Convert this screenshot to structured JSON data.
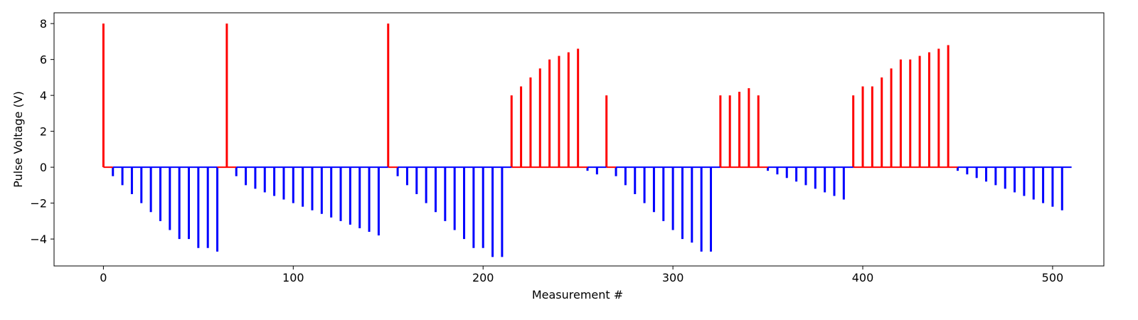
{
  "chart_data": {
    "type": "bar",
    "title": "",
    "xlabel": "Measurement #",
    "ylabel": "Pulse Voltage (V)",
    "xlim": [
      -26,
      527
    ],
    "ylim": [
      -5.5,
      8.6
    ],
    "xticks": [
      0,
      100,
      200,
      300,
      400,
      500
    ],
    "xtick_labels": [
      "0",
      "100",
      "200",
      "300",
      "400",
      "500"
    ],
    "yticks": [
      -4,
      -2,
      0,
      2,
      4,
      6,
      8
    ],
    "ytick_labels": [
      "−4",
      "−2",
      "0",
      "2",
      "4",
      "6",
      "8"
    ],
    "grid": false,
    "legend": "none",
    "colors": {
      "positive": "#ff0000",
      "negative": "#0000ff",
      "frame": "#000000"
    },
    "baseline_segments": [
      {
        "x0": 0,
        "x1": 5,
        "sign": "positive"
      },
      {
        "x0": 5,
        "x1": 60,
        "sign": "negative"
      },
      {
        "x0": 60,
        "x1": 70,
        "sign": "positive"
      },
      {
        "x0": 70,
        "x1": 150,
        "sign": "negative"
      },
      {
        "x0": 150,
        "x1": 155,
        "sign": "positive"
      },
      {
        "x0": 155,
        "x1": 215,
        "sign": "negative"
      },
      {
        "x0": 215,
        "x1": 255,
        "sign": "positive"
      },
      {
        "x0": 255,
        "x1": 265,
        "sign": "negative"
      },
      {
        "x0": 265,
        "x1": 270,
        "sign": "positive"
      },
      {
        "x0": 270,
        "x1": 325,
        "sign": "negative"
      },
      {
        "x0": 325,
        "x1": 350,
        "sign": "positive"
      },
      {
        "x0": 350,
        "x1": 395,
        "sign": "negative"
      },
      {
        "x0": 395,
        "x1": 450,
        "sign": "positive"
      },
      {
        "x0": 450,
        "x1": 510,
        "sign": "negative"
      }
    ],
    "series": [
      {
        "x": [
          0,
          5,
          10,
          15,
          20,
          25,
          30,
          35,
          40,
          45,
          50,
          55,
          60,
          65,
          70,
          75,
          80,
          85,
          90,
          95,
          100,
          105,
          110,
          115,
          120,
          125,
          130,
          135,
          140,
          145,
          150,
          155,
          160,
          165,
          170,
          175,
          180,
          185,
          190,
          195,
          200,
          205,
          210,
          215,
          220,
          225,
          230,
          235,
          240,
          245,
          250,
          255,
          260,
          265,
          270,
          275,
          280,
          285,
          290,
          295,
          300,
          305,
          310,
          315,
          320,
          325,
          330,
          335,
          340,
          345,
          350,
          355,
          360,
          365,
          370,
          375,
          380,
          385,
          390,
          395,
          400,
          405,
          410,
          415,
          420,
          425,
          430,
          435,
          440,
          445,
          450,
          455,
          460,
          465,
          470,
          475,
          480,
          485,
          490,
          495,
          500,
          505
        ],
        "values": [
          8,
          -0.5,
          -1,
          -1.5,
          -2,
          -2.5,
          -3,
          -3.5,
          -4,
          -4,
          -4.5,
          -4.5,
          -4.7,
          8,
          -0.5,
          -1,
          -1.2,
          -1.4,
          -1.6,
          -1.8,
          -2,
          -2.2,
          -2.4,
          -2.6,
          -2.8,
          -3,
          -3.2,
          -3.4,
          -3.6,
          -3.8,
          8,
          -0.5,
          -1,
          -1.5,
          -2,
          -2.5,
          -3,
          -3.5,
          -4,
          -4.5,
          -4.5,
          -5,
          -5,
          4,
          4.5,
          5,
          5.5,
          6,
          6.2,
          6.4,
          6.6,
          -0.2,
          -0.4,
          4,
          -0.5,
          -1,
          -1.5,
          -2,
          -2.5,
          -3,
          -3.5,
          -4,
          -4.2,
          -4.7,
          -4.7,
          4,
          4,
          4.2,
          4.4,
          4,
          -0.2,
          -0.4,
          -0.6,
          -0.8,
          -1,
          -1.2,
          -1.4,
          -1.6,
          -1.8,
          4,
          4.5,
          4.5,
          5,
          5.5,
          6,
          6,
          6.2,
          6.4,
          6.6,
          6.8,
          -0.2,
          -0.4,
          -0.6,
          -0.8,
          -1,
          -1.2,
          -1.4,
          -1.6,
          -1.8,
          -2,
          -2.2,
          -2.4
        ]
      }
    ]
  }
}
